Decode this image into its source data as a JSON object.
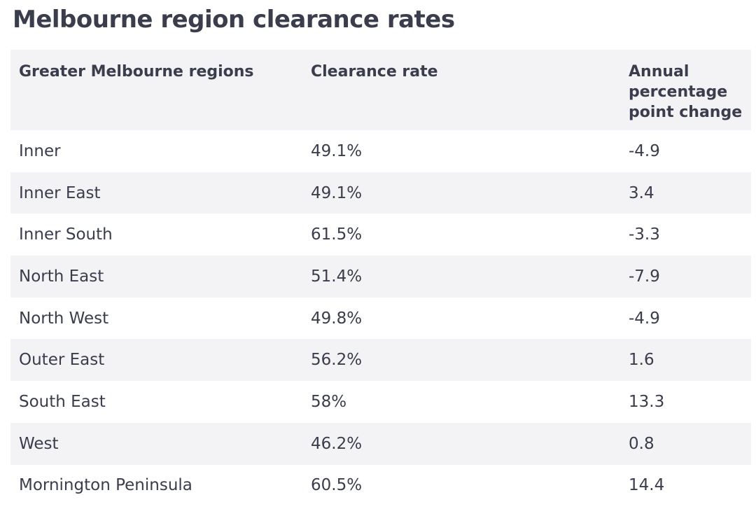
{
  "chart_data": {
    "type": "table",
    "title": "Melbourne region clearance rates",
    "columns": [
      "Greater Melbourne regions",
      "Clearance rate",
      "Annual percentage point change"
    ],
    "rows": [
      [
        "Inner",
        "49.1%",
        "-4.9"
      ],
      [
        "Inner East",
        "49.1%",
        "3.4"
      ],
      [
        "Inner South",
        "61.5%",
        "-3.3"
      ],
      [
        "North East",
        "51.4%",
        "-7.9"
      ],
      [
        "North West",
        "49.8%",
        "-4.9"
      ],
      [
        "Outer East",
        "56.2%",
        "1.6"
      ],
      [
        "South East",
        "58%",
        "13.3"
      ],
      [
        "West",
        "46.2%",
        "0.8"
      ],
      [
        "Mornington Peninsula",
        "60.5%",
        "14.4"
      ]
    ]
  }
}
